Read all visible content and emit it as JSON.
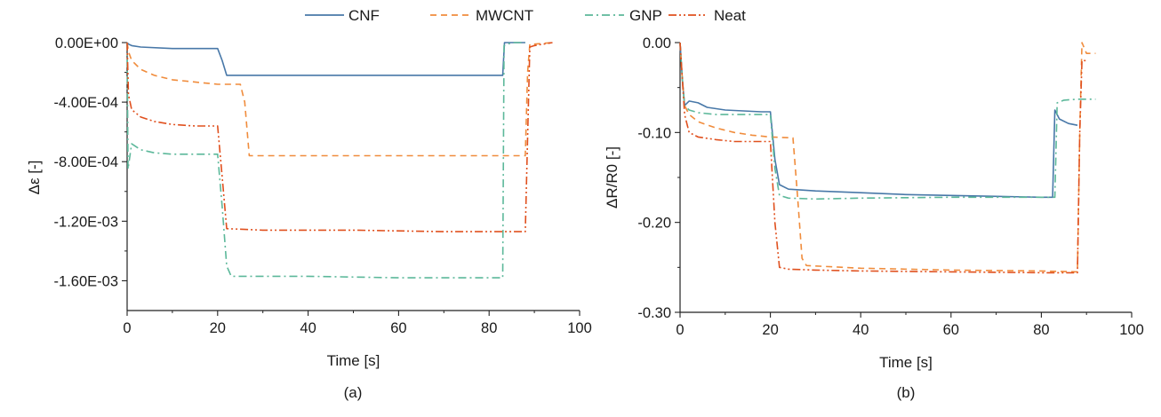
{
  "legend": {
    "items": [
      {
        "name": "CNF",
        "color": "#4878a8",
        "dash": "solid"
      },
      {
        "name": "MWCNT",
        "color": "#f08c3c",
        "dash": "dash"
      },
      {
        "name": "GNP",
        "color": "#5cb89a",
        "dash": "dashdot"
      },
      {
        "name": "Neat",
        "color": "#e0501e",
        "dash": "dashdotdot"
      }
    ]
  },
  "chart_data": [
    {
      "type": "line",
      "panel_label": "(a)",
      "xlabel": "Time [s]",
      "ylabel": "Δε [-]",
      "xlim": [
        0,
        100
      ],
      "ylim": [
        -0.0018,
        0.0
      ],
      "xticks": [
        "0",
        "20",
        "40",
        "60",
        "80",
        "100"
      ],
      "xtick_values": [
        0,
        20,
        40,
        60,
        80,
        100
      ],
      "yticks": [
        "0.00E+00",
        "-4.00E-04",
        "-8.00E-04",
        "-1.20E-03",
        "-1.60E-03"
      ],
      "ytick_values": [
        0,
        -0.0004,
        -0.0008,
        -0.0012,
        -0.0016
      ],
      "grid": false,
      "legend_position": "top-center",
      "series": [
        {
          "name": "CNF",
          "x": [
            0,
            0.3,
            1,
            3,
            10,
            20,
            21,
            22,
            30,
            50,
            70,
            83,
            83.4,
            85,
            88
          ],
          "y": [
            0,
            -1e-05,
            -2e-05,
            -3e-05,
            -4e-05,
            -4e-05,
            -0.00012,
            -0.00022,
            -0.00022,
            -0.00022,
            -0.00022,
            -0.00022,
            0,
            0,
            0
          ]
        },
        {
          "name": "MWCNT",
          "x": [
            0,
            0.3,
            1,
            3,
            6,
            10,
            20,
            25,
            26,
            27,
            28,
            40,
            60,
            80,
            88,
            88.5,
            89,
            90,
            94
          ],
          "y": [
            0,
            -6e-05,
            -0.00012,
            -0.00018,
            -0.00022,
            -0.00025,
            -0.00028,
            -0.00028,
            -0.0004,
            -0.00076,
            -0.00076,
            -0.00076,
            -0.00076,
            -0.00076,
            -0.00076,
            -0.0002,
            -1e-05,
            -1e-05,
            0
          ]
        },
        {
          "name": "GNP",
          "x": [
            0,
            0.2,
            1,
            3,
            6,
            10,
            20,
            21,
            22,
            23,
            40,
            60,
            80,
            83,
            83.3,
            85,
            88
          ],
          "y": [
            0,
            -0.00085,
            -0.00068,
            -0.00072,
            -0.00074,
            -0.00075,
            -0.00075,
            -0.0011,
            -0.0015,
            -0.00157,
            -0.00157,
            -0.00158,
            -0.00158,
            -0.00158,
            -2e-05,
            0,
            0
          ]
        },
        {
          "name": "Neat",
          "x": [
            0,
            0.3,
            1,
            3,
            6,
            10,
            15,
            20,
            21,
            22,
            30,
            50,
            70,
            88,
            89,
            90,
            94
          ],
          "y": [
            0,
            -0.00035,
            -0.00045,
            -0.0005,
            -0.00053,
            -0.00055,
            -0.00056,
            -0.00056,
            -0.0009,
            -0.00125,
            -0.00126,
            -0.00126,
            -0.00127,
            -0.00127,
            -3e-05,
            -2e-05,
            0
          ]
        }
      ]
    },
    {
      "type": "line",
      "panel_label": "(b)",
      "xlabel": "Time [s]",
      "ylabel": "ΔR/R0 [-]",
      "xlim": [
        0,
        100
      ],
      "ylim": [
        -0.3,
        0.0
      ],
      "xticks": [
        "0",
        "20",
        "40",
        "60",
        "80",
        "100"
      ],
      "xtick_values": [
        0,
        20,
        40,
        60,
        80,
        100
      ],
      "yticks": [
        "0.00",
        "-0.10",
        "-0.20",
        "-0.30"
      ],
      "ytick_values": [
        0,
        -0.1,
        -0.2,
        -0.3
      ],
      "grid": false,
      "legend_position": "top-center",
      "series": [
        {
          "name": "CNF",
          "x": [
            0,
            0.5,
            1,
            2,
            4,
            6,
            10,
            14,
            18,
            20,
            21,
            22,
            24,
            30,
            40,
            50,
            60,
            70,
            80,
            82.5,
            83,
            84,
            86,
            88
          ],
          "y": [
            0,
            -0.04,
            -0.07,
            -0.065,
            -0.067,
            -0.072,
            -0.075,
            -0.076,
            -0.077,
            -0.077,
            -0.13,
            -0.158,
            -0.163,
            -0.165,
            -0.167,
            -0.169,
            -0.17,
            -0.171,
            -0.172,
            -0.172,
            -0.075,
            -0.085,
            -0.09,
            -0.092
          ]
        },
        {
          "name": "MWCNT",
          "x": [
            0,
            0.5,
            1,
            2,
            4,
            8,
            12,
            16,
            20,
            25,
            26,
            27,
            28,
            40,
            60,
            80,
            88,
            88.5,
            89,
            90,
            92
          ],
          "y": [
            0,
            -0.04,
            -0.07,
            -0.08,
            -0.088,
            -0.095,
            -0.1,
            -0.103,
            -0.105,
            -0.106,
            -0.17,
            -0.24,
            -0.248,
            -0.251,
            -0.253,
            -0.254,
            -0.255,
            -0.1,
            0,
            -0.012,
            -0.012
          ]
        },
        {
          "name": "GNP",
          "x": [
            0,
            0.5,
            1,
            2,
            4,
            8,
            12,
            16,
            20,
            21,
            22,
            24,
            30,
            40,
            60,
            80,
            83,
            83.5,
            85,
            88,
            92
          ],
          "y": [
            0,
            -0.04,
            -0.07,
            -0.075,
            -0.078,
            -0.08,
            -0.08,
            -0.08,
            -0.08,
            -0.14,
            -0.17,
            -0.173,
            -0.174,
            -0.173,
            -0.172,
            -0.172,
            -0.172,
            -0.067,
            -0.064,
            -0.063,
            -0.063
          ]
        },
        {
          "name": "Neat",
          "x": [
            0,
            0.5,
            1,
            2,
            4,
            8,
            12,
            16,
            20,
            21,
            22,
            24,
            30,
            40,
            60,
            80,
            88,
            88.5,
            89,
            90
          ],
          "y": [
            0,
            -0.04,
            -0.08,
            -0.1,
            -0.105,
            -0.108,
            -0.11,
            -0.11,
            -0.11,
            -0.2,
            -0.25,
            -0.252,
            -0.253,
            -0.254,
            -0.255,
            -0.256,
            -0.256,
            -0.1,
            -0.02,
            -0.02
          ]
        }
      ]
    }
  ]
}
